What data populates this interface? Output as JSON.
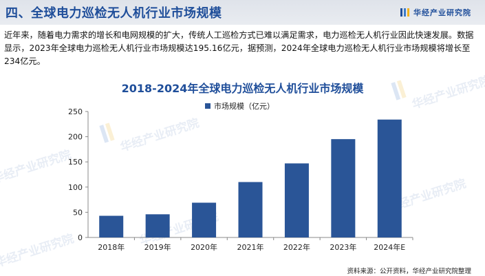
{
  "header": {
    "title": "四、全球电力巡检无人机行业市场规模"
  },
  "brand": {
    "name": "华经产业研究院",
    "colors": [
      "#1f4e9a",
      "#3d7cc9",
      "#f2b21c"
    ]
  },
  "intro": "近年来，随着电力需求的增长和电网规模的扩大，传统人工巡检方式已难以满足需求，电力巡检无人机行业因此快速发展。数据显示，2023年全球电力巡检无人机行业市场规模达195.16亿元，据预测，2024年全球电力巡检无人机行业市场规模将增长至234亿元。",
  "watermark": "华经产业研究院",
  "chart_data": {
    "type": "bar",
    "title": "2018-2024年全球电力巡检无人机行业市场规模",
    "categories": [
      "2018年",
      "2019年",
      "2020年",
      "2021年",
      "2022年",
      "2023年",
      "2024年E"
    ],
    "series": [
      {
        "name": "市场规模（亿元）",
        "values": [
          43,
          46,
          69,
          110,
          147,
          195.16,
          234
        ],
        "color": "#2a5597"
      }
    ],
    "ylim": [
      0,
      250
    ],
    "yticks": [
      0,
      50,
      100,
      150,
      200,
      250
    ],
    "grid": false,
    "legend": "top-center"
  },
  "source": "资料来源：公开资料，华经产业研究院整理"
}
